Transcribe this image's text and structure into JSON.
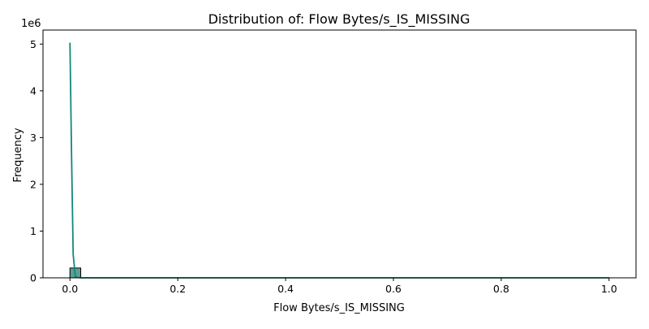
{
  "chart_data": {
    "type": "histogram",
    "title": "Distribution of: Flow Bytes/s_IS_MISSING",
    "xlabel": "Flow Bytes/s_IS_MISSING",
    "ylabel": "Frequency",
    "y_offset_label": "1e6",
    "xlim": [
      -0.05,
      1.05
    ],
    "ylim": [
      0,
      5300000
    ],
    "x_ticks": [
      0.0,
      0.2,
      0.4,
      0.6,
      0.8,
      1.0
    ],
    "x_tick_labels": [
      "0.0",
      "0.2",
      "0.4",
      "0.6",
      "0.8",
      "1.0"
    ],
    "y_ticks": [
      0,
      1000000,
      2000000,
      3000000,
      4000000,
      5000000
    ],
    "y_tick_labels": [
      "0",
      "1",
      "2",
      "3",
      "4",
      "5"
    ],
    "grid": false,
    "bars": [
      {
        "x0": 0.0,
        "x1": 0.02,
        "count": 210000
      }
    ],
    "kde_curve": {
      "x": [
        0.0,
        0.003,
        0.006,
        0.01,
        0.02,
        0.05,
        0.1,
        0.2,
        0.4,
        0.6,
        0.8,
        0.99,
        1.0
      ],
      "y": [
        5030000,
        2600000,
        500000,
        20000,
        0,
        0,
        0,
        0,
        0,
        0,
        0,
        0,
        0
      ]
    },
    "colors": {
      "bar_fill": "#5f9e95",
      "bar_edge": "#000000",
      "kde_line": "#12877b",
      "axes": "#000000"
    }
  }
}
